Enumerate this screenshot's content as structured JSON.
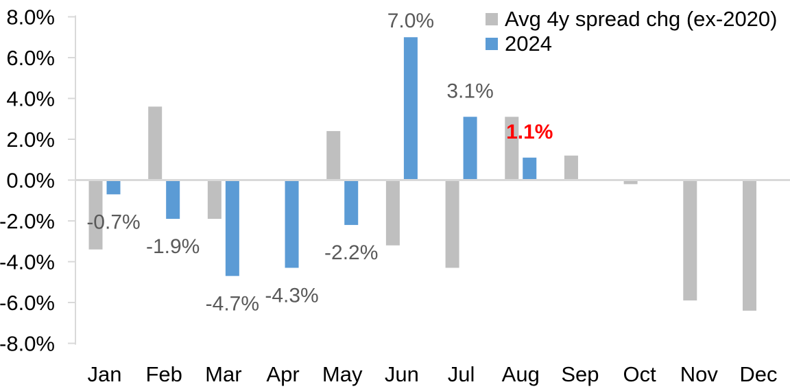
{
  "chart_data": {
    "type": "bar",
    "title": "",
    "xlabel": "",
    "ylabel": "",
    "categories": [
      "Jan",
      "Feb",
      "Mar",
      "Apr",
      "May",
      "Jun",
      "Jul",
      "Aug",
      "Sep",
      "Oct",
      "Nov",
      "Dec"
    ],
    "series": [
      {
        "name": "Avg 4y spread chg (ex-2020)",
        "color": "#BFBFBF",
        "values": [
          -3.4,
          3.6,
          -1.9,
          0.0,
          2.4,
          -3.2,
          -4.3,
          3.1,
          1.2,
          -0.2,
          -5.9,
          -6.4
        ]
      },
      {
        "name": "2024",
        "color": "#5B9BD5",
        "values": [
          -0.7,
          -1.9,
          -4.7,
          -4.3,
          -2.2,
          7.0,
          3.1,
          1.1,
          null,
          null,
          null,
          null
        ]
      }
    ],
    "data_labels": [
      {
        "category": "Jan",
        "series": "2024",
        "text": "-0.7%",
        "color": "#595959",
        "bold": false
      },
      {
        "category": "Feb",
        "series": "2024",
        "text": "-1.9%",
        "color": "#595959",
        "bold": false
      },
      {
        "category": "Mar",
        "series": "2024",
        "text": "-4.7%",
        "color": "#595959",
        "bold": false
      },
      {
        "category": "Apr",
        "series": "2024",
        "text": "-4.3%",
        "color": "#595959",
        "bold": false
      },
      {
        "category": "May",
        "series": "2024",
        "text": "-2.2%",
        "color": "#595959",
        "bold": false
      },
      {
        "category": "Jun",
        "series": "2024",
        "text": "7.0%",
        "color": "#595959",
        "bold": false
      },
      {
        "category": "Jul",
        "series": "2024",
        "text": "3.1%",
        "color": "#595959",
        "bold": false
      },
      {
        "category": "Aug",
        "series": "2024",
        "text": "1.1%",
        "color": "#FF0000",
        "bold": true
      }
    ],
    "ylim": [
      -8,
      8
    ],
    "ytick_values": [
      8,
      6,
      4,
      2,
      0,
      -2,
      -4,
      -6,
      -8
    ],
    "ytick_labels": [
      "8.0%",
      "6.0%",
      "4.0%",
      "2.0%",
      "0.0%",
      "-2.0%",
      "-4.0%",
      "-6.0%",
      "-8.0%"
    ],
    "grid": false,
    "legend_position": "top-right",
    "styles": {
      "axis_color": "#D9D9D9",
      "tick_text_color": "#000000",
      "month_text_color": "#000000",
      "default_label_color": "#595959",
      "highlight_label_color": "#FF0000"
    }
  }
}
